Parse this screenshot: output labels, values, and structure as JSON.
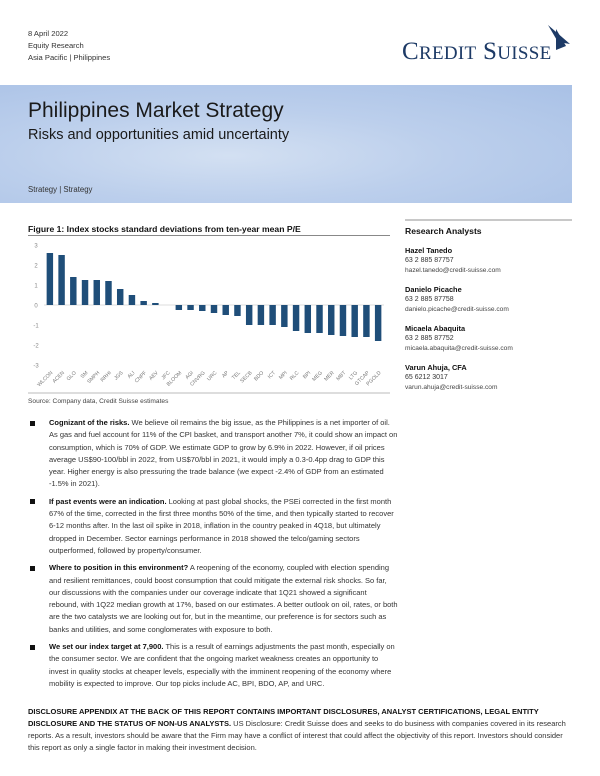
{
  "header": {
    "date": "8 April 2022",
    "division": "Equity Research",
    "region": "Asia Pacific | Philippines",
    "logo": "Credit Suisse"
  },
  "banner": {
    "title": "Philippines Market Strategy",
    "subtitle": "Risks and opportunities amid uncertainty",
    "category": "Strategy | Strategy"
  },
  "figure": {
    "title": "Figure 1: Index stocks standard deviations from ten-year mean P/E",
    "source": "Source: Company data, Credit Suisse estimates"
  },
  "chart_data": {
    "type": "bar",
    "title": "Figure 1: Index stocks standard deviations from ten-year mean P/E",
    "categories": [
      "WLCON",
      "ACEN",
      "GLO",
      "SM",
      "SMPH",
      "RRHI",
      "JGS",
      "ALI",
      "CNPF",
      "AEV",
      "JFC",
      "BLOOM",
      "AGI",
      "CNVRG",
      "URC",
      "AP",
      "TEL",
      "SECB",
      "BDO",
      "ICT",
      "MPI",
      "RLC",
      "BPI",
      "MEG",
      "MER",
      "MBT",
      "LTG",
      "GTCAP",
      "PGOLD"
    ],
    "values": [
      2.6,
      2.5,
      1.4,
      1.25,
      1.25,
      1.2,
      0.8,
      0.5,
      0.2,
      0.1,
      0.0,
      -0.25,
      -0.25,
      -0.3,
      -0.4,
      -0.5,
      -0.55,
      -1.0,
      -1.0,
      -1.0,
      -1.1,
      -1.3,
      -1.4,
      -1.4,
      -1.5,
      -1.55,
      -1.6,
      -1.6,
      -1.8
    ],
    "ylim": [
      -3,
      3
    ],
    "yticks": [
      "3",
      "2",
      "1",
      "0",
      "-1",
      "-2",
      "-3"
    ],
    "color": "#1f4e79",
    "grid": false
  },
  "analysts": {
    "heading": "Research Analysts",
    "people": [
      {
        "name": "Hazel Tanedo",
        "phone": "63 2 885 87757",
        "email": "hazel.tanedo@credit-suisse.com"
      },
      {
        "name": "Danielo Picache",
        "phone": "63 2 885 87758",
        "email": "danielo.picache@credit-suisse.com"
      },
      {
        "name": "Micaela Abaquita",
        "phone": "63 2 885 87752",
        "email": "micaela.abaquita@credit-suisse.com"
      },
      {
        "name": "Varun Ahuja, CFA",
        "phone": "65 6212 3017",
        "email": "varun.ahuja@credit-suisse.com"
      }
    ]
  },
  "bullets": [
    {
      "lead": "Cognizant of the risks.",
      "text": " We believe oil remains the big issue, as the Philippines is a net importer of oil. As gas and fuel account for 11% of the CPI basket, and transport another 7%, it could show an impact on consumption, which is 70% of GDP. We estimate GDP to grow by 6.9% in 2022. However, if oil prices average US$90-100/bbl in 2022, from US$70/bbl in 2021, it would imply a 0.3-0.4pp drag to GDP this year. Higher energy is also pressuring the trade balance (we expect -2.4% of GDP from an estimated -1.5% in 2021)."
    },
    {
      "lead": "If past events were an indication.",
      "text": " Looking at past global shocks, the PSEi corrected in the first month 67% of the time, corrected in the first three months 50% of the time, and then typically started to recover 6-12 months after. In the last oil spike in 2018, inflation in the country peaked in 4Q18, but ultimately dropped in December. Sector earnings performance in 2018 showed the telco/gaming sectors outperformed, followed by property/consumer."
    },
    {
      "lead": "Where to position in this environment?",
      "text": " A reopening of the economy, coupled with election spending and resilient remittances, could boost consumption that could mitigate the external risk shocks. So far, our discussions with the companies under our coverage indicate that 1Q21 showed a significant rebound, with 1Q22 median growth at 17%, based on our estimates. A better outlook on oil, rates, or both are the two catalysts we are looking out for, but in the meantime, our preference is for sectors such as banks and utilities, and some conglomerates with exposure to both."
    },
    {
      "lead": "We set our index target at 7,900.",
      "text": " This is a result of earnings adjustments the past month, especially on the consumer sector. We are confident that the ongoing market weakness creates an opportunity to invest in quality stocks at cheaper levels, especially with the imminent reopening of the economy where mobility is expected to improve. Our top picks include AC, BPI, BDO, AP, and URC."
    }
  ],
  "disclosure": {
    "lead": "DISCLOSURE APPENDIX AT THE BACK OF THIS REPORT CONTAINS IMPORTANT DISCLOSURES, ANALYST CERTIFICATIONS, LEGAL ENTITY DISCLOSURE AND THE STATUS OF NON-US ANALYSTS.",
    "text": "  US Disclosure: Credit Suisse does and seeks to do business with companies covered in its research reports. As a result, investors should be aware that the Firm may have a conflict of interest that could affect the objectivity of this report. Investors should consider this report as only a single factor in making their investment decision."
  }
}
